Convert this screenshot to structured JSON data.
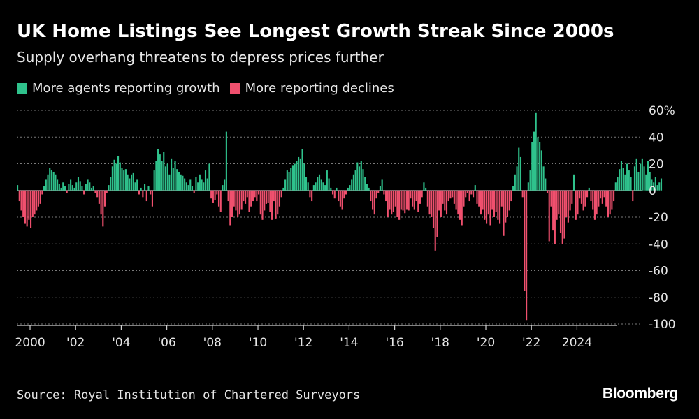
{
  "header": {
    "title": "UK Home Listings See Longest Growth Streak Since 2000s",
    "subtitle": "Supply overhang threatens to depress prices further"
  },
  "legend": {
    "growth_label": "More agents reporting growth",
    "decline_label": "More reporting declines"
  },
  "footer": {
    "source": "Source: Royal Institution of Chartered Surveyors",
    "brand": "Bloomberg"
  },
  "colors": {
    "background": "#000000",
    "growth": "#2fc28c",
    "decline": "#f0506e",
    "grid": "#7a7a7a",
    "text": "#e6e6e6"
  },
  "chart_data": {
    "type": "bar",
    "x_unit": "month",
    "x_start": "1999-06",
    "ylim": [
      -100,
      60
    ],
    "yticks": [
      60,
      40,
      20,
      0,
      -20,
      -40,
      -60,
      -80,
      -100
    ],
    "ytick_labels": [
      "60%",
      "40",
      "20",
      "0",
      "-20",
      "-40",
      "-60",
      "-80",
      "-100"
    ],
    "xticks": [
      {
        "year": 2000,
        "label": "2000"
      },
      {
        "year": 2002,
        "label": "'02"
      },
      {
        "year": 2004,
        "label": "'04"
      },
      {
        "year": 2006,
        "label": "'06"
      },
      {
        "year": 2008,
        "label": "'08"
      },
      {
        "year": 2010,
        "label": "'10"
      },
      {
        "year": 2012,
        "label": "'12"
      },
      {
        "year": 2014,
        "label": "'14"
      },
      {
        "year": 2016,
        "label": "'16"
      },
      {
        "year": 2018,
        "label": "'18"
      },
      {
        "year": 2020,
        "label": "'20"
      },
      {
        "year": 2022,
        "label": "'22"
      },
      {
        "year": 2024,
        "label": "2024"
      }
    ],
    "grid": true,
    "legend_position": "top-left",
    "series": [
      {
        "name": "More agents reporting growth",
        "positive": true
      },
      {
        "name": "More reporting declines",
        "positive": false
      }
    ],
    "values": [
      4,
      -8,
      -15,
      -20,
      -25,
      -27,
      -22,
      -28,
      -20,
      -18,
      -15,
      -12,
      -10,
      -3,
      3,
      8,
      12,
      17,
      15,
      14,
      12,
      8,
      5,
      2,
      6,
      3,
      -2,
      5,
      8,
      4,
      2,
      6,
      10,
      7,
      3,
      -3,
      5,
      8,
      6,
      2,
      3,
      -2,
      -5,
      -10,
      -18,
      -27,
      -12,
      -2,
      4,
      10,
      18,
      23,
      20,
      26,
      21,
      17,
      15,
      16,
      12,
      9,
      12,
      13,
      6,
      8,
      -3,
      2,
      -5,
      5,
      -8,
      3,
      -3,
      -12,
      15,
      22,
      31,
      27,
      22,
      29,
      18,
      20,
      12,
      24,
      17,
      22,
      16,
      14,
      12,
      11,
      9,
      6,
      4,
      8,
      3,
      -2,
      10,
      6,
      12,
      8,
      6,
      15,
      9,
      20,
      -6,
      -9,
      -7,
      -3,
      -12,
      -16,
      4,
      8,
      44,
      -8,
      -26,
      -20,
      -12,
      -15,
      -20,
      -18,
      -14,
      -8,
      -10,
      -5,
      -16,
      -12,
      -8,
      -5,
      -8,
      -3,
      -18,
      -22,
      -15,
      -10,
      -9,
      -16,
      -22,
      -8,
      -21,
      -18,
      -12,
      -5,
      2,
      8,
      15,
      14,
      17,
      19,
      20,
      22,
      25,
      24,
      31,
      20,
      10,
      6,
      -5,
      -8,
      4,
      6,
      10,
      12,
      8,
      6,
      4,
      15,
      9,
      2,
      -3,
      -6,
      2,
      -8,
      -12,
      -14,
      -6,
      -3,
      2,
      4,
      8,
      12,
      15,
      21,
      18,
      22,
      16,
      10,
      5,
      2,
      -8,
      -14,
      -18,
      -6,
      -2,
      3,
      8,
      -3,
      -8,
      -20,
      -14,
      -18,
      -16,
      -12,
      -20,
      -22,
      -14,
      -15,
      -17,
      -14,
      -15,
      -6,
      -12,
      -14,
      -8,
      -16,
      -10,
      -5,
      6,
      2,
      -12,
      -18,
      -20,
      -28,
      -45,
      -35,
      -15,
      -20,
      -10,
      -15,
      -18,
      -8,
      -6,
      -5,
      -10,
      -14,
      -18,
      -22,
      -26,
      -12,
      -5,
      -2,
      -8,
      -3,
      -5,
      4,
      -10,
      -12,
      -18,
      -14,
      -22,
      -25,
      -18,
      -26,
      -14,
      -20,
      -16,
      -22,
      -25,
      -12,
      -34,
      -24,
      -20,
      -15,
      -8,
      3,
      12,
      18,
      32,
      25,
      -5,
      -75,
      -97,
      6,
      15,
      36,
      44,
      58,
      40,
      36,
      30,
      18,
      9,
      -2,
      -38,
      -12,
      -30,
      -40,
      -22,
      -18,
      -32,
      -40,
      -36,
      -20,
      -24,
      -15,
      -10,
      12,
      -22,
      -18,
      -6,
      -10,
      -15,
      -12,
      -5,
      2,
      -8,
      -14,
      -22,
      -18,
      -12,
      -6,
      -10,
      -5,
      -12,
      -20,
      -18,
      -14,
      -8,
      6,
      10,
      16,
      22,
      17,
      12,
      20,
      15,
      10,
      -8,
      18,
      24,
      14,
      20,
      24,
      18,
      12,
      22,
      14,
      8,
      6,
      10,
      4,
      6,
      9
    ]
  }
}
